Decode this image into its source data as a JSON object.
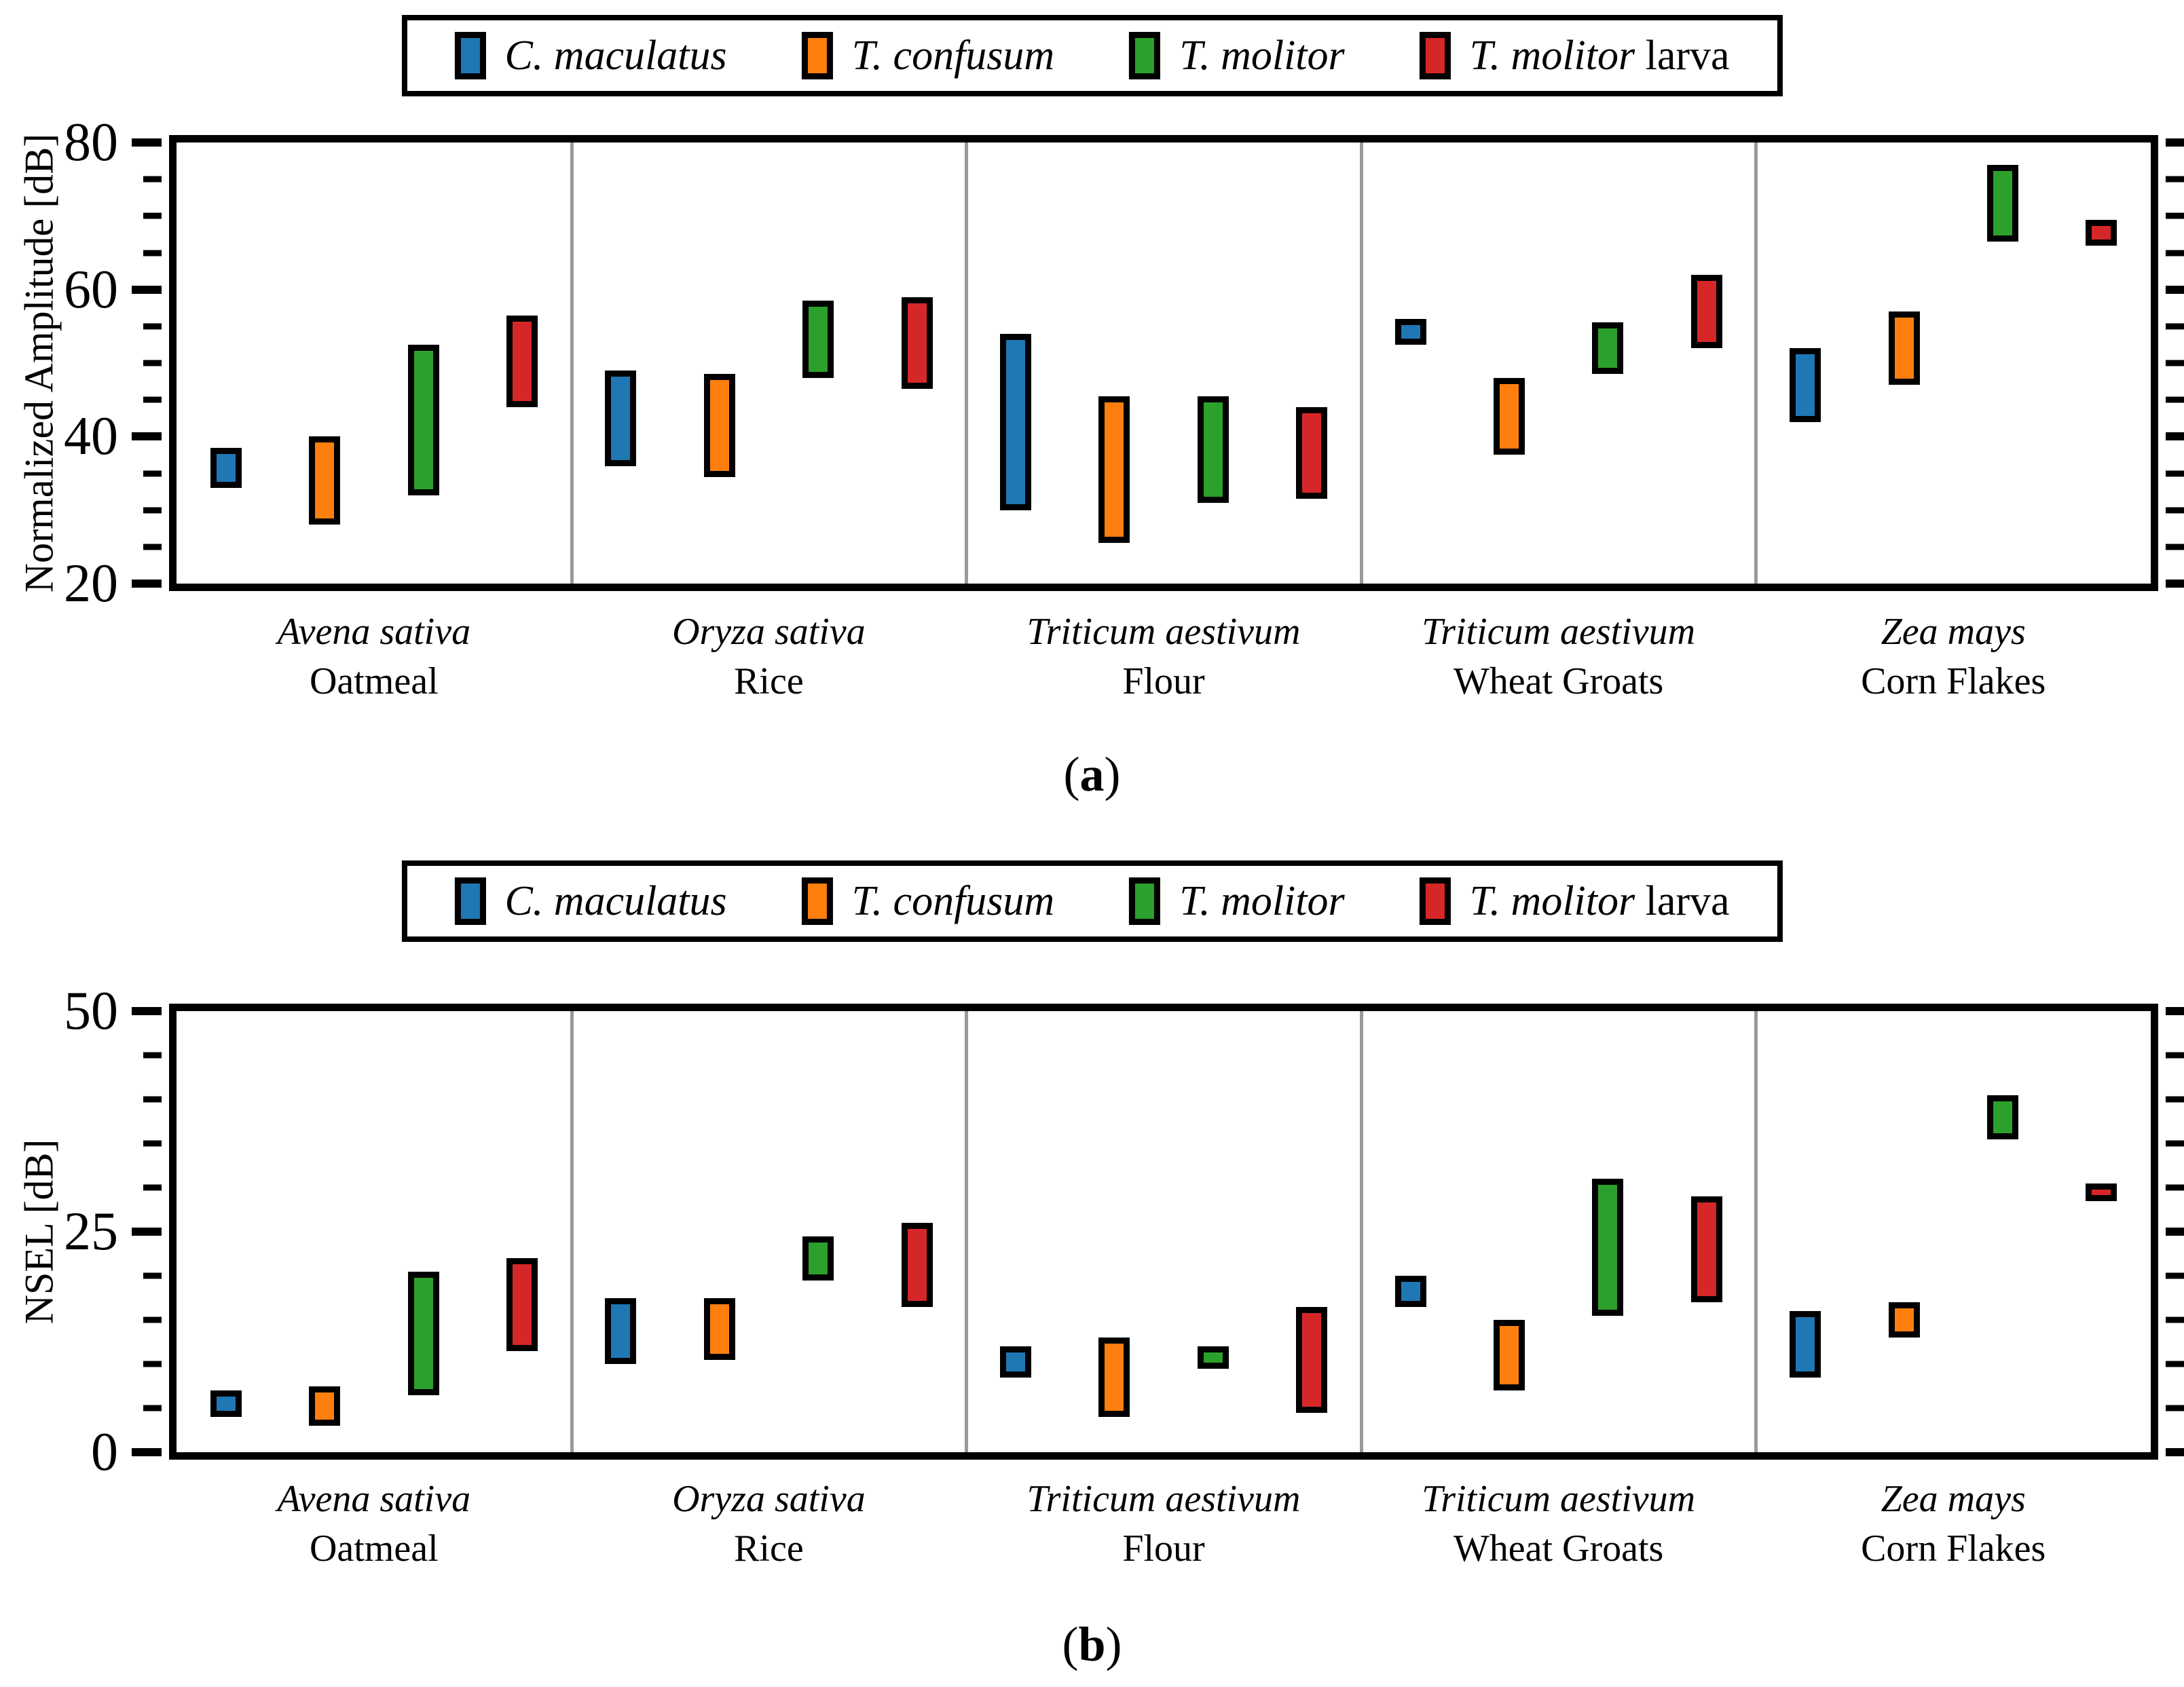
{
  "colors": {
    "blue": "#1f77b4",
    "orange": "#ff7f0e",
    "green": "#2ca02c",
    "red": "#d62728",
    "separator_gray": "#999999",
    "axis_black": "#000000",
    "background": "#ffffff"
  },
  "legend": {
    "items": [
      {
        "italic": "C. maculatus",
        "roman": "",
        "color": "#1f77b4"
      },
      {
        "italic": "T. confusum",
        "roman": "",
        "color": "#ff7f0e"
      },
      {
        "italic": "T. molitor",
        "roman": "",
        "color": "#2ca02c"
      },
      {
        "italic": "T. molitor",
        "roman": " larva",
        "color": "#d62728"
      }
    ]
  },
  "groups": [
    {
      "species": "Avena sativa",
      "product": "Oatmeal"
    },
    {
      "species": "Oryza sativa",
      "product": "Rice"
    },
    {
      "species": "Triticum aestivum",
      "product": "Flour"
    },
    {
      "species": "Triticum aestivum",
      "product": "Wheat Groats"
    },
    {
      "species": "Zea mays",
      "product": "Corn Flakes"
    }
  ],
  "chart_data": [
    {
      "type": "bar",
      "variant": "floating-range-bars",
      "panel": "a",
      "caption_letter": "a",
      "ylabel": "Normalized Amplitude [dB]",
      "ylim": [
        20,
        80
      ],
      "yticks_major": [
        20,
        40,
        60,
        80
      ],
      "minor_tick_step": 5,
      "grid": "vertical-category-separators-only",
      "legend_position": "top-center-outside",
      "categories": [
        "Avena sativa Oatmeal",
        "Oryza sativa Rice",
        "Triticum aestivum Flour",
        "Triticum aestivum Wheat Groats",
        "Zea mays Corn Flakes"
      ],
      "series": [
        {
          "name": "C. maculatus",
          "color": "#1f77b4",
          "ranges": [
            [
              33,
              38.5
            ],
            [
              36,
              49
            ],
            [
              30,
              54
            ],
            [
              52.5,
              56
            ],
            [
              42,
              52
            ]
          ]
        },
        {
          "name": "T. confusum",
          "color": "#ff7f0e",
          "ranges": [
            [
              28,
              40
            ],
            [
              34.5,
              48.5
            ],
            [
              25.5,
              45.5
            ],
            [
              37.5,
              48
            ],
            [
              47,
              57
            ]
          ]
        },
        {
          "name": "T. molitor",
          "color": "#2ca02c",
          "ranges": [
            [
              32,
              52.5
            ],
            [
              48,
              58.5
            ],
            [
              31,
              45.5
            ],
            [
              48.5,
              55.5
            ],
            [
              66.5,
              77
            ]
          ]
        },
        {
          "name": "T. molitor larva",
          "color": "#d62728",
          "ranges": [
            [
              44,
              56.5
            ],
            [
              46.5,
              59
            ],
            [
              31.5,
              44
            ],
            [
              52,
              62
            ],
            [
              66,
              69.5
            ]
          ]
        }
      ]
    },
    {
      "type": "bar",
      "variant": "floating-range-bars",
      "panel": "b",
      "caption_letter": "b",
      "ylabel": "NSEL [dB]",
      "ylim": [
        0,
        50
      ],
      "yticks_major": [
        0,
        25,
        50
      ],
      "minor_tick_step": 5,
      "grid": "vertical-category-separators-only",
      "legend_position": "top-center-outside",
      "categories": [
        "Avena sativa Oatmeal",
        "Oryza sativa Rice",
        "Triticum aestivum Flour",
        "Triticum aestivum Wheat Groats",
        "Zea mays Corn Flakes"
      ],
      "series": [
        {
          "name": "C. maculatus",
          "color": "#1f77b4",
          "ranges": [
            [
              4,
              7
            ],
            [
              10,
              17.5
            ],
            [
              8.5,
              12
            ],
            [
              16.5,
              20
            ],
            [
              8.5,
              16
            ]
          ]
        },
        {
          "name": "T. confusum",
          "color": "#ff7f0e",
          "ranges": [
            [
              3,
              7.5
            ],
            [
              10.5,
              17.5
            ],
            [
              4,
              13
            ],
            [
              7,
              15
            ],
            [
              13,
              17
            ]
          ]
        },
        {
          "name": "T. molitor",
          "color": "#2ca02c",
          "ranges": [
            [
              6.5,
              20.5
            ],
            [
              19.5,
              24.5
            ],
            [
              9.5,
              12
            ],
            [
              15.5,
              31
            ],
            [
              35.5,
              40.5
            ]
          ]
        },
        {
          "name": "T. molitor larva",
          "color": "#d62728",
          "ranges": [
            [
              11.5,
              22
            ],
            [
              16.5,
              26
            ],
            [
              4.5,
              16.5
            ],
            [
              17,
              29
            ],
            [
              28.5,
              30.5
            ]
          ]
        }
      ]
    }
  ]
}
